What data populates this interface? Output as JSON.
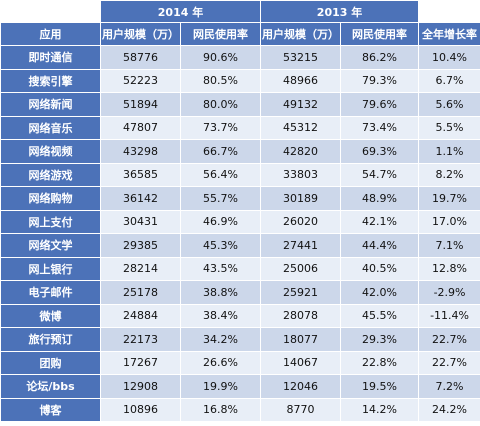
{
  "header": {
    "year_a": "2014 年",
    "year_b": "2013 年",
    "columns": [
      "应用",
      "用户规模（万）",
      "网民使用率",
      "用户规模（万）",
      "网民使用率",
      "全年增长率"
    ]
  },
  "rows": [
    {
      "app": "即时通信",
      "u2014": "58776",
      "r2014": "90.6%",
      "u2013": "53215",
      "r2013": "86.2%",
      "growth": "10.4%"
    },
    {
      "app": "搜索引擎",
      "u2014": "52223",
      "r2014": "80.5%",
      "u2013": "48966",
      "r2013": "79.3%",
      "growth": "6.7%"
    },
    {
      "app": "网络新闻",
      "u2014": "51894",
      "r2014": "80.0%",
      "u2013": "49132",
      "r2013": "79.6%",
      "growth": "5.6%"
    },
    {
      "app": "网络音乐",
      "u2014": "47807",
      "r2014": "73.7%",
      "u2013": "45312",
      "r2013": "73.4%",
      "growth": "5.5%"
    },
    {
      "app": "网络视频",
      "u2014": "43298",
      "r2014": "66.7%",
      "u2013": "42820",
      "r2013": "69.3%",
      "growth": "1.1%"
    },
    {
      "app": "网络游戏",
      "u2014": "36585",
      "r2014": "56.4%",
      "u2013": "33803",
      "r2013": "54.7%",
      "growth": "8.2%"
    },
    {
      "app": "网络购物",
      "u2014": "36142",
      "r2014": "55.7%",
      "u2013": "30189",
      "r2013": "48.9%",
      "growth": "19.7%"
    },
    {
      "app": "网上支付",
      "u2014": "30431",
      "r2014": "46.9%",
      "u2013": "26020",
      "r2013": "42.1%",
      "growth": "17.0%"
    },
    {
      "app": "网络文学",
      "u2014": "29385",
      "r2014": "45.3%",
      "u2013": "27441",
      "r2013": "44.4%",
      "growth": "7.1%"
    },
    {
      "app": "网上银行",
      "u2014": "28214",
      "r2014": "43.5%",
      "u2013": "25006",
      "r2013": "40.5%",
      "growth": "12.8%"
    },
    {
      "app": "电子邮件",
      "u2014": "25178",
      "r2014": "38.8%",
      "u2013": "25921",
      "r2013": "42.0%",
      "growth": "-2.9%"
    },
    {
      "app": "微博",
      "u2014": "24884",
      "r2014": "38.4%",
      "u2013": "28078",
      "r2013": "45.5%",
      "growth": "-11.4%"
    },
    {
      "app": "旅行预订",
      "u2014": "22173",
      "r2014": "34.2%",
      "u2013": "18077",
      "r2013": "29.3%",
      "growth": "22.7%"
    },
    {
      "app": "团购",
      "u2014": "17267",
      "r2014": "26.6%",
      "u2013": "14067",
      "r2013": "22.8%",
      "growth": "22.7%"
    },
    {
      "app": "论坛/bbs",
      "u2014": "12908",
      "r2014": "19.9%",
      "u2013": "12046",
      "r2013": "19.5%",
      "growth": "7.2%"
    },
    {
      "app": "博客",
      "u2014": "10896",
      "r2014": "16.8%",
      "u2013": "8770",
      "r2013": "14.2%",
      "growth": "24.2%"
    }
  ],
  "colors": {
    "header_bg": "#4c72b8",
    "row_odd": "#ccd7ea",
    "row_even": "#e8eef7"
  }
}
